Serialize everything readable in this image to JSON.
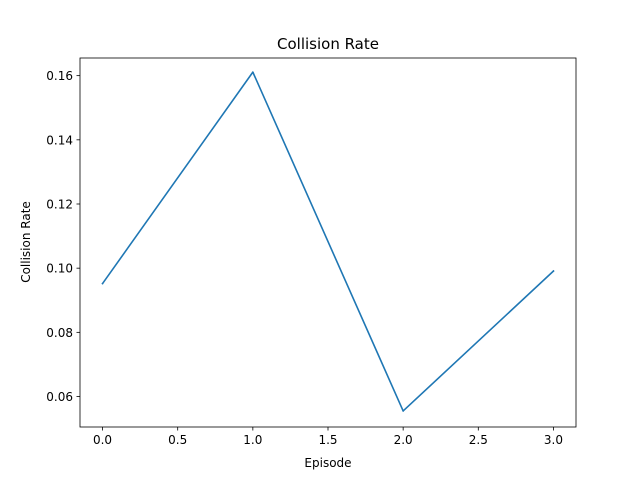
{
  "chart_data": {
    "type": "line",
    "title": "Collision Rate",
    "xlabel": "Episode",
    "ylabel": "Collision Rate",
    "xlim": [
      -0.15,
      3.15
    ],
    "ylim": [
      0.0505,
      0.1655
    ],
    "xticks": [
      0.0,
      0.5,
      1.0,
      1.5,
      2.0,
      2.5,
      3.0
    ],
    "xtick_labels": [
      "0.0",
      "0.5",
      "1.0",
      "1.5",
      "2.0",
      "2.5",
      "3.0"
    ],
    "yticks": [
      0.06,
      0.08,
      0.1,
      0.12,
      0.14,
      0.16
    ],
    "ytick_labels": [
      "0.06",
      "0.08",
      "0.10",
      "0.12",
      "0.14",
      "0.16"
    ],
    "grid": false,
    "legend": "none",
    "series": [
      {
        "x": [
          0,
          1,
          2,
          3
        ],
        "values": [
          0.0952,
          0.1611,
          0.0555,
          0.0991
        ],
        "color": "#1f77b4"
      }
    ]
  }
}
